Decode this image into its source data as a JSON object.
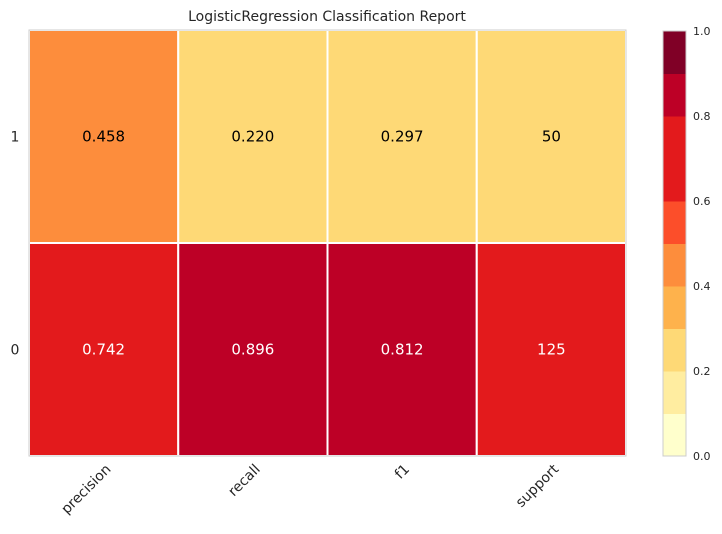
{
  "chart_data": {
    "type": "heatmap",
    "title": "LogisticRegression Classification Report",
    "columns": [
      "precision",
      "recall",
      "f1",
      "support"
    ],
    "rows": [
      "1",
      "0"
    ],
    "values": [
      [
        0.458,
        0.22,
        0.297,
        0.297
      ],
      [
        0.742,
        0.896,
        0.812,
        0.742
      ]
    ],
    "labels": [
      [
        "0.458",
        "0.220",
        "0.297",
        "50"
      ],
      [
        "0.742",
        "0.896",
        "0.812",
        "125"
      ]
    ],
    "support": [
      50,
      125
    ],
    "colorbar": {
      "range": [
        0,
        1
      ],
      "ticks": [
        "0.0",
        "0.2",
        "0.4",
        "0.6",
        "0.8",
        "1.0"
      ],
      "bins": 10,
      "colormap": "YlOrRd",
      "colors": [
        "#ffffcc",
        "#ffeda0",
        "#fed976",
        "#feb24c",
        "#fd8d3c",
        "#fc4e2a",
        "#e31a1c",
        "#e31a1c",
        "#bd0026",
        "#800026"
      ]
    },
    "grid": false
  }
}
